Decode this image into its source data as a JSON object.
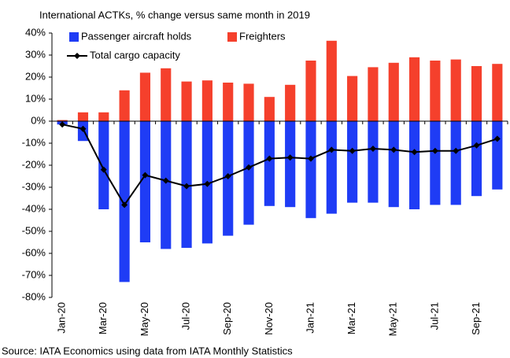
{
  "chart_data": {
    "type": "bar",
    "title": "International ACTKs, % change versus same month in 2019",
    "source": "Source: IATA Economics using data from IATA Monthly Statistics",
    "categories": [
      "Jan-20",
      null,
      "Mar-20",
      null,
      "May-20",
      null,
      "Jul-20",
      null,
      "Sep-20",
      null,
      "Nov-20",
      null,
      "Jan-21",
      null,
      "Mar-21",
      null,
      "May-21",
      null,
      "Jul-21",
      null,
      "Sep-21",
      null
    ],
    "series": [
      {
        "name": "Passenger aircraft holds",
        "type": "bar",
        "color": "#1f3cf5",
        "values": [
          -1.5,
          -9,
          -40,
          -73,
          -55,
          -58,
          -57.5,
          -55.5,
          -52,
          -47,
          -38.5,
          -39,
          -44,
          -42,
          -37,
          -37,
          -39,
          -40,
          -38,
          -38,
          -34,
          -31
        ]
      },
      {
        "name": "Freighters",
        "type": "bar",
        "color": "#f5402c",
        "values": [
          0.5,
          4,
          4,
          14,
          22,
          24,
          18,
          18.5,
          17.5,
          17,
          11,
          16.5,
          27.5,
          36.5,
          20.5,
          24.5,
          26.5,
          29,
          27.5,
          28,
          25,
          26
        ]
      },
      {
        "name": "Total cargo capacity",
        "type": "line",
        "color": "#000000",
        "values": [
          -1.5,
          -3.5,
          -22,
          -38,
          -24.5,
          -27,
          -29.5,
          -28.5,
          -25,
          -21,
          -17,
          -16.5,
          -17,
          -13,
          -13.5,
          -12.5,
          -13,
          -14,
          -13.5,
          -13.5,
          -11,
          -8
        ]
      }
    ],
    "ylim": [
      -80,
      40
    ],
    "yticks": [
      {
        "value": -80,
        "label": "-80%"
      },
      {
        "value": -70,
        "label": "-70%"
      },
      {
        "value": -60,
        "label": "-60%"
      },
      {
        "value": -50,
        "label": "-50%"
      },
      {
        "value": -40,
        "label": "-40%"
      },
      {
        "value": -30,
        "label": "-30%"
      },
      {
        "value": -20,
        "label": "-20%"
      },
      {
        "value": -10,
        "label": "-10%"
      },
      {
        "value": 0,
        "label": "0%"
      },
      {
        "value": 10,
        "label": "10%"
      },
      {
        "value": 20,
        "label": "20%"
      },
      {
        "value": 30,
        "label": "30%"
      },
      {
        "value": 40,
        "label": "40%"
      }
    ],
    "grid": false
  }
}
